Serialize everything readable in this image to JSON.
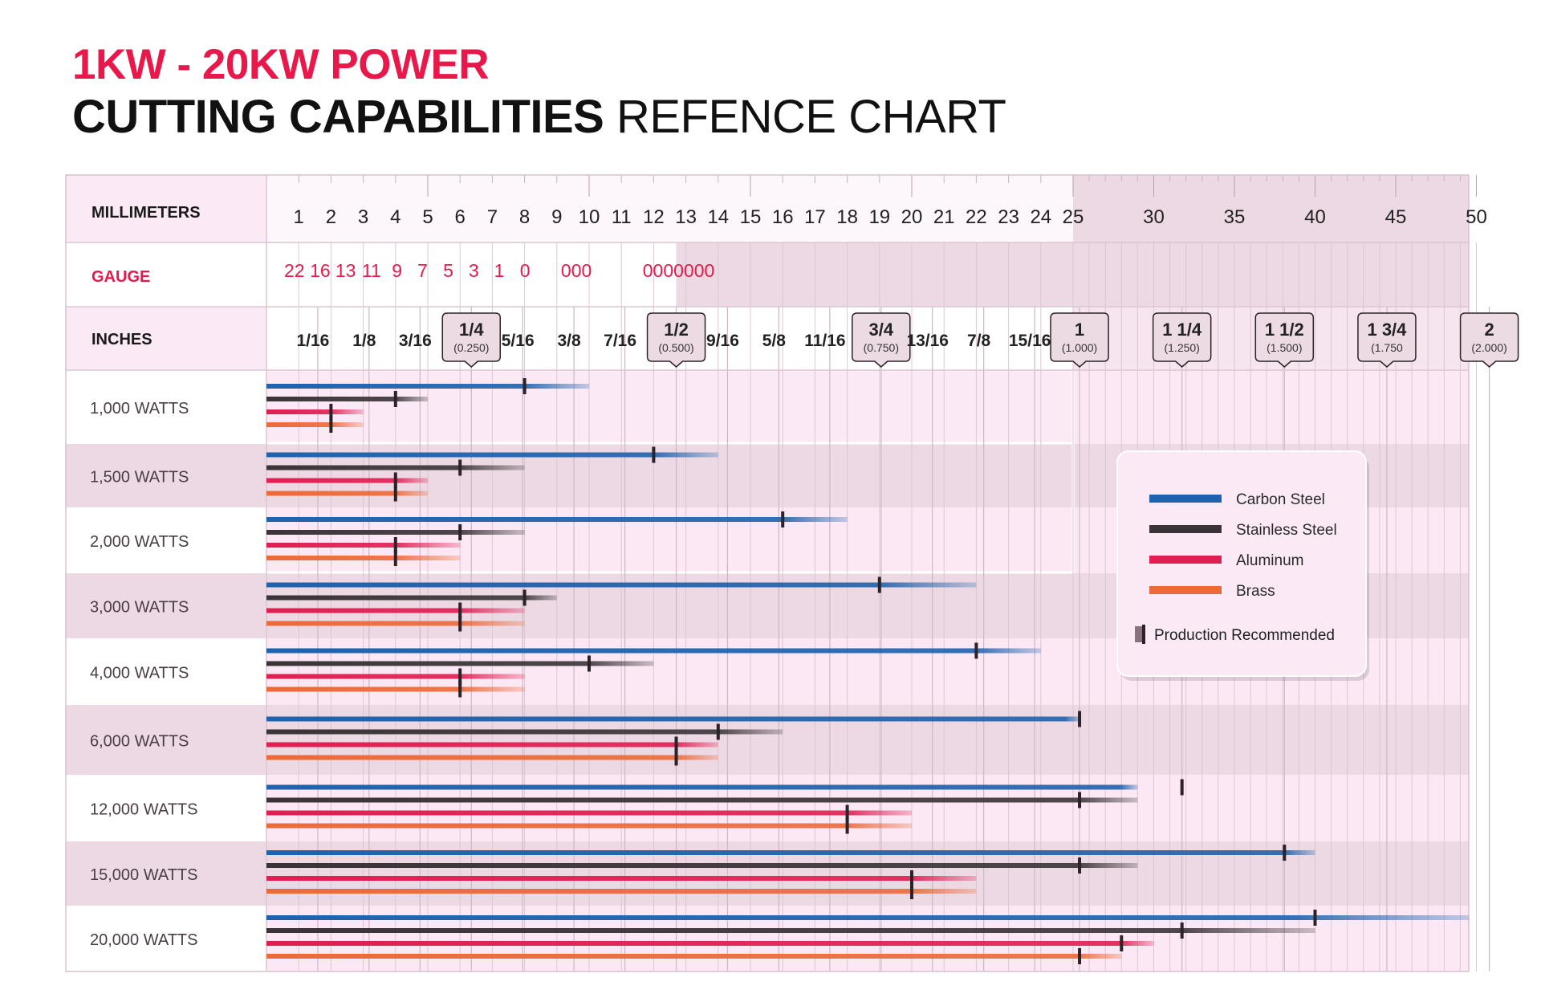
{
  "title": {
    "line1": "1KW - 20KW POWER",
    "line2_bold": "CUTTING CAPABILITIES",
    "line2_rest": " REFENCE CHART"
  },
  "chart_data": {
    "type": "bar",
    "title": "1KW - 20KW POWER CUTTING CAPABILITIES REFENCE CHART",
    "xlabel": "MILLIMETERS",
    "units": "mm",
    "xlim": [
      0,
      50
    ],
    "row_headers": {
      "mm": "MILLIMETERS",
      "gauge": "GAUGE",
      "inches": "INCHES"
    },
    "mm_ticks": [
      "1",
      "2",
      "3",
      "4",
      "5",
      "6",
      "7",
      "8",
      "9",
      "10",
      "11",
      "12",
      "13",
      "14",
      "15",
      "16",
      "17",
      "18",
      "19",
      "20",
      "21",
      "22",
      "23",
      "24",
      "25",
      "30",
      "35",
      "40",
      "45",
      "50"
    ],
    "gauge_ticks": [
      {
        "label": "22",
        "mm": 0.79
      },
      {
        "label": "16",
        "mm": 1.59
      },
      {
        "label": "13",
        "mm": 2.38
      },
      {
        "label": "11",
        "mm": 3.18
      },
      {
        "label": "9",
        "mm": 3.97
      },
      {
        "label": "7",
        "mm": 4.76
      },
      {
        "label": "5",
        "mm": 5.56
      },
      {
        "label": "3",
        "mm": 6.35
      },
      {
        "label": "1",
        "mm": 7.14
      },
      {
        "label": "0",
        "mm": 7.94
      },
      {
        "label": "000",
        "mm": 9.53
      },
      {
        "label": "0000000",
        "mm": 12.7
      }
    ],
    "inch_ticks": [
      {
        "label": "1/16",
        "mm": 1.59
      },
      {
        "label": "1/8",
        "mm": 3.18
      },
      {
        "label": "3/16",
        "mm": 4.76
      },
      {
        "label": "1/4",
        "sub": "(0.250)",
        "mm": 6.35
      },
      {
        "label": "5/16",
        "mm": 7.94
      },
      {
        "label": "3/8",
        "mm": 9.53
      },
      {
        "label": "7/16",
        "mm": 11.11
      },
      {
        "label": "1/2",
        "sub": "(0.500)",
        "mm": 12.7
      },
      {
        "label": "9/16",
        "mm": 14.29
      },
      {
        "label": "5/8",
        "mm": 15.88
      },
      {
        "label": "11/16",
        "mm": 17.46
      },
      {
        "label": "3/4",
        "sub": "(0.750)",
        "mm": 19.05
      },
      {
        "label": "13/16",
        "mm": 20.64
      },
      {
        "label": "7/8",
        "mm": 22.23
      },
      {
        "label": "15/16",
        "mm": 23.81
      },
      {
        "label": "1",
        "sub": "(1.000)",
        "mm": 25.4
      },
      {
        "label": "1 1/4",
        "sub": "(1.250)",
        "mm": 31.75
      },
      {
        "label": "1 1/2",
        "sub": "(1.500)",
        "mm": 38.1
      },
      {
        "label": "1 3/4",
        "sub": "(1.750",
        "mm": 44.45
      },
      {
        "label": "2",
        "sub": "(2.000)",
        "mm": 50.8
      }
    ],
    "categories": [
      "1,000 WATTS",
      "1,500 WATTS",
      "2,000 WATTS",
      "3,000 WATTS",
      "4,000 WATTS",
      "6,000 WATTS",
      "12,000 WATTS",
      "15,000 WATTS",
      "20,000 WATTS"
    ],
    "series": [
      {
        "name": "Carbon Steel",
        "color": "#1f62ad",
        "values": [
          10,
          14,
          18,
          22,
          24,
          25.5,
          29,
          40,
          51
        ],
        "recommended": [
          8,
          12,
          16,
          19,
          22,
          25.4,
          31.75,
          38.1,
          40
        ]
      },
      {
        "name": "Stainless Steel",
        "color": "#3a3438",
        "values": [
          5,
          8,
          8,
          9,
          12,
          16,
          29,
          29,
          40
        ],
        "recommended": [
          4,
          6,
          6,
          8,
          10,
          14,
          25.4,
          25.4,
          31.75
        ]
      },
      {
        "name": "Aluminum",
        "color": "#e01e52",
        "values": [
          3,
          5,
          6,
          8,
          8,
          14,
          20,
          22,
          30
        ],
        "recommended": [
          2,
          4,
          4,
          6,
          6,
          12.7,
          18,
          20,
          28
        ]
      },
      {
        "name": "Brass",
        "color": "#ec6a3a",
        "values": [
          3,
          5,
          6,
          8,
          8,
          14,
          20,
          22,
          28
        ],
        "recommended": [
          2,
          4,
          4,
          6,
          6,
          12.7,
          18,
          20,
          25.4
        ]
      }
    ],
    "legend": {
      "position": "right",
      "recommended_label": "Production Recommended"
    }
  }
}
